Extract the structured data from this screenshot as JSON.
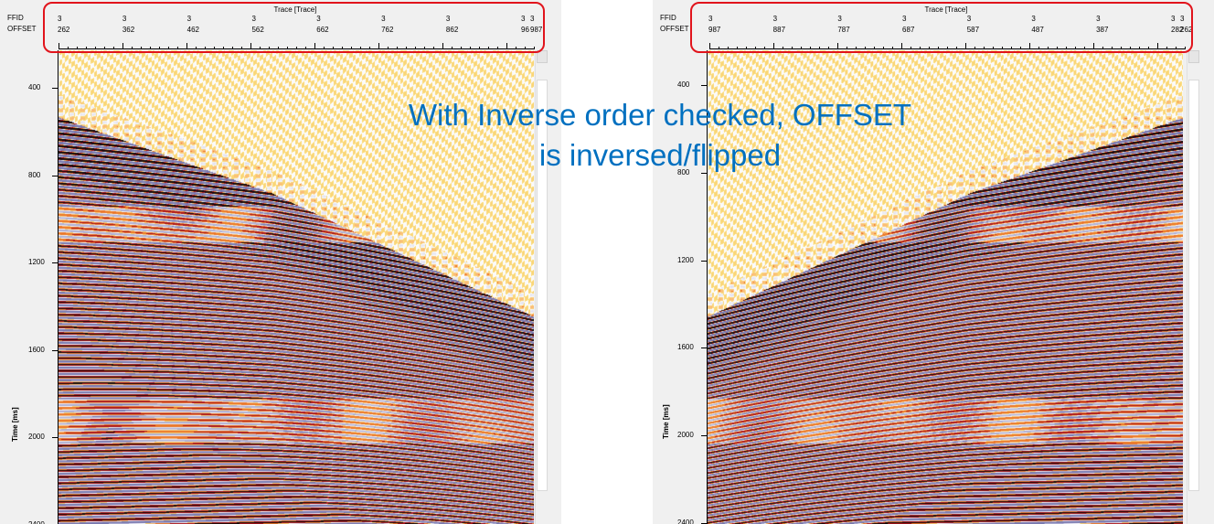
{
  "annotation": {
    "line1": "With Inverse order checked, OFFSET",
    "line2": "is inversed/flipped",
    "color": "#0070c0"
  },
  "highlight_color": "#e1141c",
  "panels": [
    {
      "id": "left",
      "axis_title": "Trace [Trace]",
      "header_names": [
        "FFID",
        "OFFSET"
      ],
      "ffid_ticks": [
        "3",
        "3",
        "3",
        "3",
        "3",
        "3",
        "3",
        "3",
        "3"
      ],
      "offset_ticks": [
        "262",
        "362",
        "462",
        "562",
        "662",
        "762",
        "862",
        "96",
        "987"
      ],
      "time_ticks": [
        "400",
        "800",
        "1200",
        "1600",
        "2000",
        "2400"
      ],
      "time_axis_label": "Time [ms]",
      "first_break_direction": "increasing-right"
    },
    {
      "id": "right",
      "axis_title": "Trace [Trace]",
      "header_names": [
        "FFID",
        "OFFSET"
      ],
      "ffid_ticks": [
        "3",
        "3",
        "3",
        "3",
        "3",
        "3",
        "3",
        "3",
        "3"
      ],
      "offset_ticks": [
        "987",
        "887",
        "787",
        "687",
        "587",
        "487",
        "387",
        "282",
        "262"
      ],
      "time_ticks": [
        "400",
        "800",
        "1200",
        "1600",
        "2000",
        "2400"
      ],
      "time_axis_label": "Time [ms]",
      "first_break_direction": "increasing-left"
    }
  ]
}
